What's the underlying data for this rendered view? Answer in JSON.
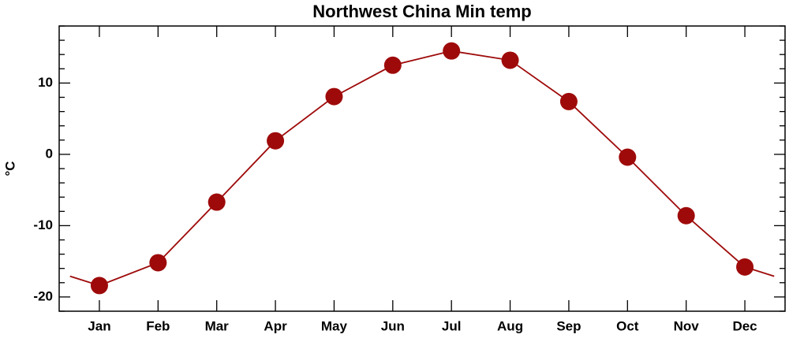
{
  "chart_data": {
    "type": "line",
    "title": "Northwest China Min temp",
    "y_label": "°C",
    "categories": [
      "Jan",
      "Feb",
      "Mar",
      "Apr",
      "May",
      "Jun",
      "Jul",
      "Aug",
      "Sep",
      "Oct",
      "Nov",
      "Dec"
    ],
    "series": [
      {
        "name": "Min temp",
        "color": "#9e0a0a",
        "values": [
          -18.4,
          -15.2,
          -6.7,
          1.9,
          8.1,
          12.5,
          14.5,
          13.2,
          7.4,
          -0.4,
          -8.6,
          -15.8
        ]
      }
    ],
    "ylim": [
      -22,
      18
    ],
    "yticks": [
      -20,
      -10,
      0,
      10
    ],
    "yminorticks": [
      -22,
      -18,
      -16,
      -14,
      -12,
      -8,
      -6,
      -4,
      -2,
      2,
      4,
      6,
      8,
      12,
      14,
      16,
      18
    ],
    "wrap_around": true,
    "markers": true
  }
}
